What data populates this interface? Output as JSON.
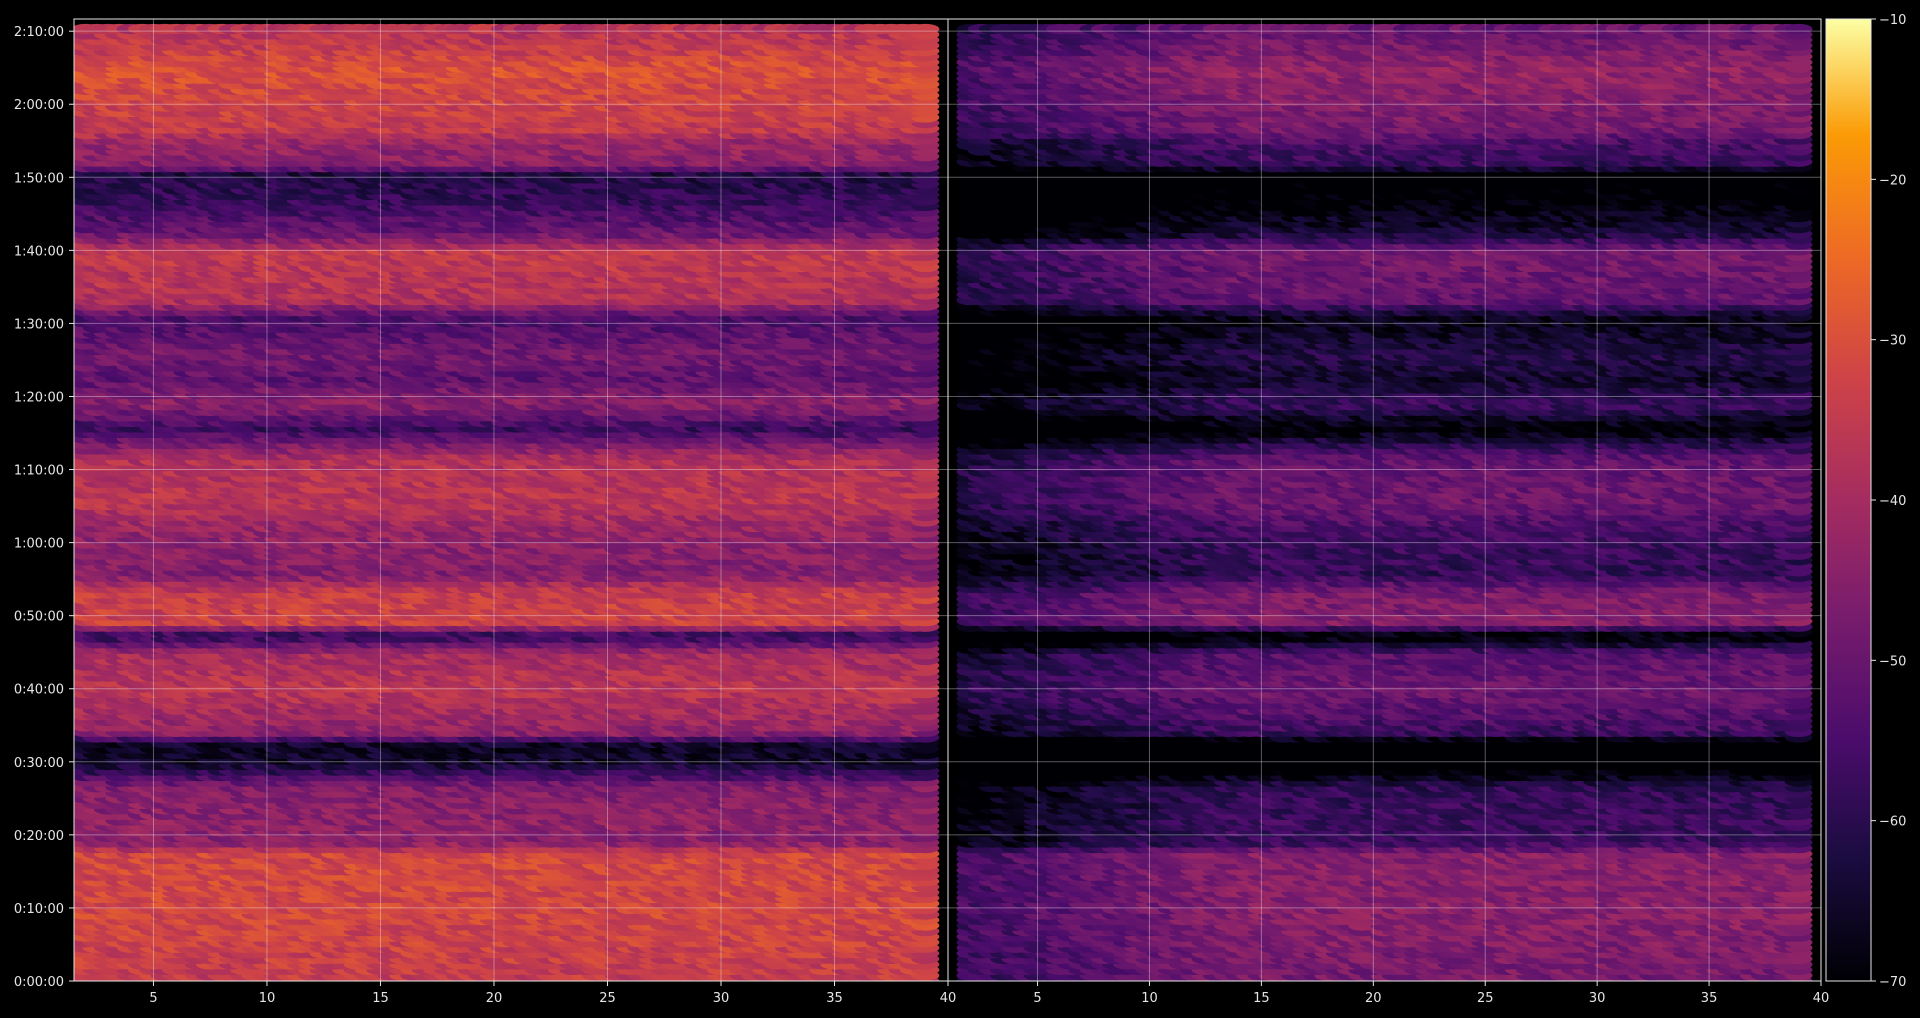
{
  "chart_data": {
    "type": "heatmap",
    "title": "",
    "colormap": "inferno",
    "panels": [
      {
        "name": "",
        "xlim": [
          1.5,
          40
        ],
        "xticks": [
          5,
          10,
          15,
          20,
          25,
          30,
          35,
          40
        ],
        "level_offset": 0
      },
      {
        "name": "",
        "xlim": [
          1,
          40
        ],
        "xticks": [
          5,
          10,
          15,
          20,
          25,
          30,
          35,
          40
        ],
        "level_offset": -13
      }
    ],
    "x_range": [
      2,
      39
    ],
    "ylim_seconds": [
      0,
      7900
    ],
    "y_ticks": [
      "0:00:00",
      "0:10:00",
      "0:20:00",
      "0:30:00",
      "0:40:00",
      "0:50:00",
      "1:00:00",
      "1:10:00",
      "1:20:00",
      "1:30:00",
      "1:40:00",
      "1:50:00",
      "2:00:00",
      "2:10:00"
    ],
    "y_tick_seconds": [
      0,
      600,
      1200,
      1800,
      2400,
      3000,
      3600,
      4200,
      4800,
      5400,
      6000,
      6600,
      7200,
      7800
    ],
    "colorbar": {
      "min": -70,
      "max": -10,
      "ticks": [
        -10,
        -20,
        -30,
        -40,
        -50,
        -60,
        -70
      ]
    },
    "time_step_seconds": 100,
    "level_profile_dB": [
      {
        "t": 0,
        "v": -35
      },
      {
        "t": 500,
        "v": -32
      },
      {
        "t": 1050,
        "v": -32
      },
      {
        "t": 1150,
        "v": -45
      },
      {
        "t": 1300,
        "v": -44
      },
      {
        "t": 1600,
        "v": -46
      },
      {
        "t": 1800,
        "v": -65
      },
      {
        "t": 1950,
        "v": -66
      },
      {
        "t": 2050,
        "v": -44
      },
      {
        "t": 2400,
        "v": -36
      },
      {
        "t": 2700,
        "v": -40
      },
      {
        "t": 2850,
        "v": -60
      },
      {
        "t": 2950,
        "v": -33
      },
      {
        "t": 3200,
        "v": -34
      },
      {
        "t": 3350,
        "v": -46
      },
      {
        "t": 3600,
        "v": -44
      },
      {
        "t": 3750,
        "v": -42
      },
      {
        "t": 3950,
        "v": -36
      },
      {
        "t": 4300,
        "v": -38
      },
      {
        "t": 4550,
        "v": -58
      },
      {
        "t": 4750,
        "v": -44
      },
      {
        "t": 4950,
        "v": -52
      },
      {
        "t": 5150,
        "v": -48
      },
      {
        "t": 5450,
        "v": -55
      },
      {
        "t": 5600,
        "v": -38
      },
      {
        "t": 6000,
        "v": -35
      },
      {
        "t": 6150,
        "v": -50
      },
      {
        "t": 6400,
        "v": -58
      },
      {
        "t": 6650,
        "v": -62
      },
      {
        "t": 6700,
        "v": -45
      },
      {
        "t": 6900,
        "v": -42
      },
      {
        "t": 7000,
        "v": -35
      },
      {
        "t": 7200,
        "v": -33
      },
      {
        "t": 7500,
        "v": -30
      },
      {
        "t": 7700,
        "v": -35
      },
      {
        "t": 7900,
        "v": -38
      }
    ]
  }
}
